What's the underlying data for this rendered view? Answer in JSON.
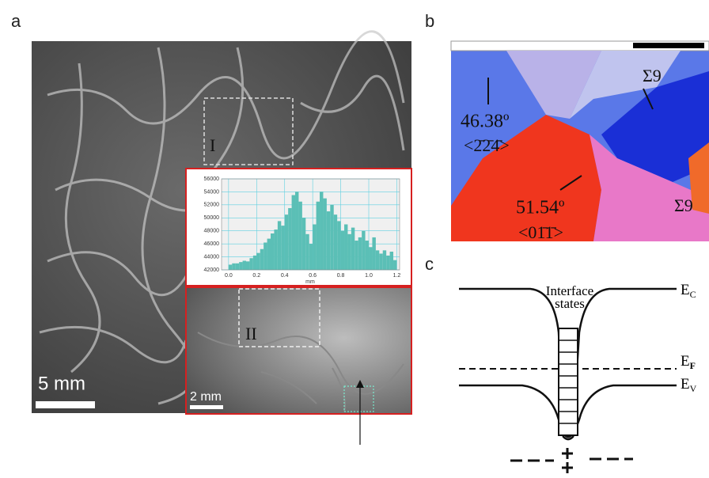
{
  "panel_a": {
    "label": "a",
    "scale_bar": "5 mm",
    "region_1": "I",
    "region_2": "II",
    "inset_scale_bar": "2 mm"
  },
  "panel_b": {
    "label": "b",
    "angle_1": "46.38º",
    "axis_1": "<2̄2̄4̄>",
    "angle_2": "51.54º",
    "axis_2": "<01̄1̄>",
    "sigma_1": "Σ9",
    "sigma_2": "Σ9"
  },
  "panel_c": {
    "label": "c",
    "interface_states_1": "Interface",
    "interface_states_2": "states",
    "ec": {
      "main": "E",
      "sub": "C"
    },
    "ef": {
      "main": "E",
      "sub": "F"
    },
    "ev": {
      "main": "E",
      "sub": "V"
    }
  },
  "chart_data": {
    "type": "histogram",
    "x_label": "mm",
    "color": "#5bbfb6",
    "grid": true,
    "bins": [
      0,
      0.025,
      0.05,
      0.075,
      0.1,
      0.125,
      0.15,
      0.175,
      0.2,
      0.225,
      0.25,
      0.275,
      0.3,
      0.325,
      0.35,
      0.375,
      0.4,
      0.425,
      0.45,
      0.475,
      0.5,
      0.525,
      0.55,
      0.575,
      0.6,
      0.625,
      0.65,
      0.675,
      0.7,
      0.725,
      0.75,
      0.775,
      0.8,
      0.825,
      0.85,
      0.875,
      0.9,
      0.925,
      0.95,
      0.975,
      1.0,
      1.025,
      1.05,
      1.075,
      1.1,
      1.125,
      1.15,
      1.175,
      1.2
    ],
    "values": [
      42800,
      43000,
      43000,
      43200,
      43400,
      43300,
      43800,
      44200,
      44600,
      45200,
      46200,
      46800,
      47600,
      48200,
      49500,
      48800,
      50500,
      51500,
      53500,
      54000,
      52500,
      50000,
      47500,
      46000,
      49000,
      52500,
      54000,
      53000,
      51000,
      52000,
      50500,
      49500,
      48000,
      49000,
      47500,
      48500,
      46500,
      47000,
      48000,
      46500,
      45500,
      47000,
      45000,
      44500,
      45000,
      44200,
      44800,
      43500
    ],
    "xlim": [
      -0.05,
      1.22
    ],
    "ylim": [
      42000,
      56000
    ],
    "xticks": [
      {
        "value": 0,
        "label": "0.0"
      },
      0.2,
      0.4,
      0.6,
      0.8,
      {
        "value": 1,
        "label": "1.0"
      },
      1.2
    ],
    "yticks": [
      42000,
      44000,
      46000,
      48000,
      50000,
      52000,
      54000,
      56000
    ]
  }
}
